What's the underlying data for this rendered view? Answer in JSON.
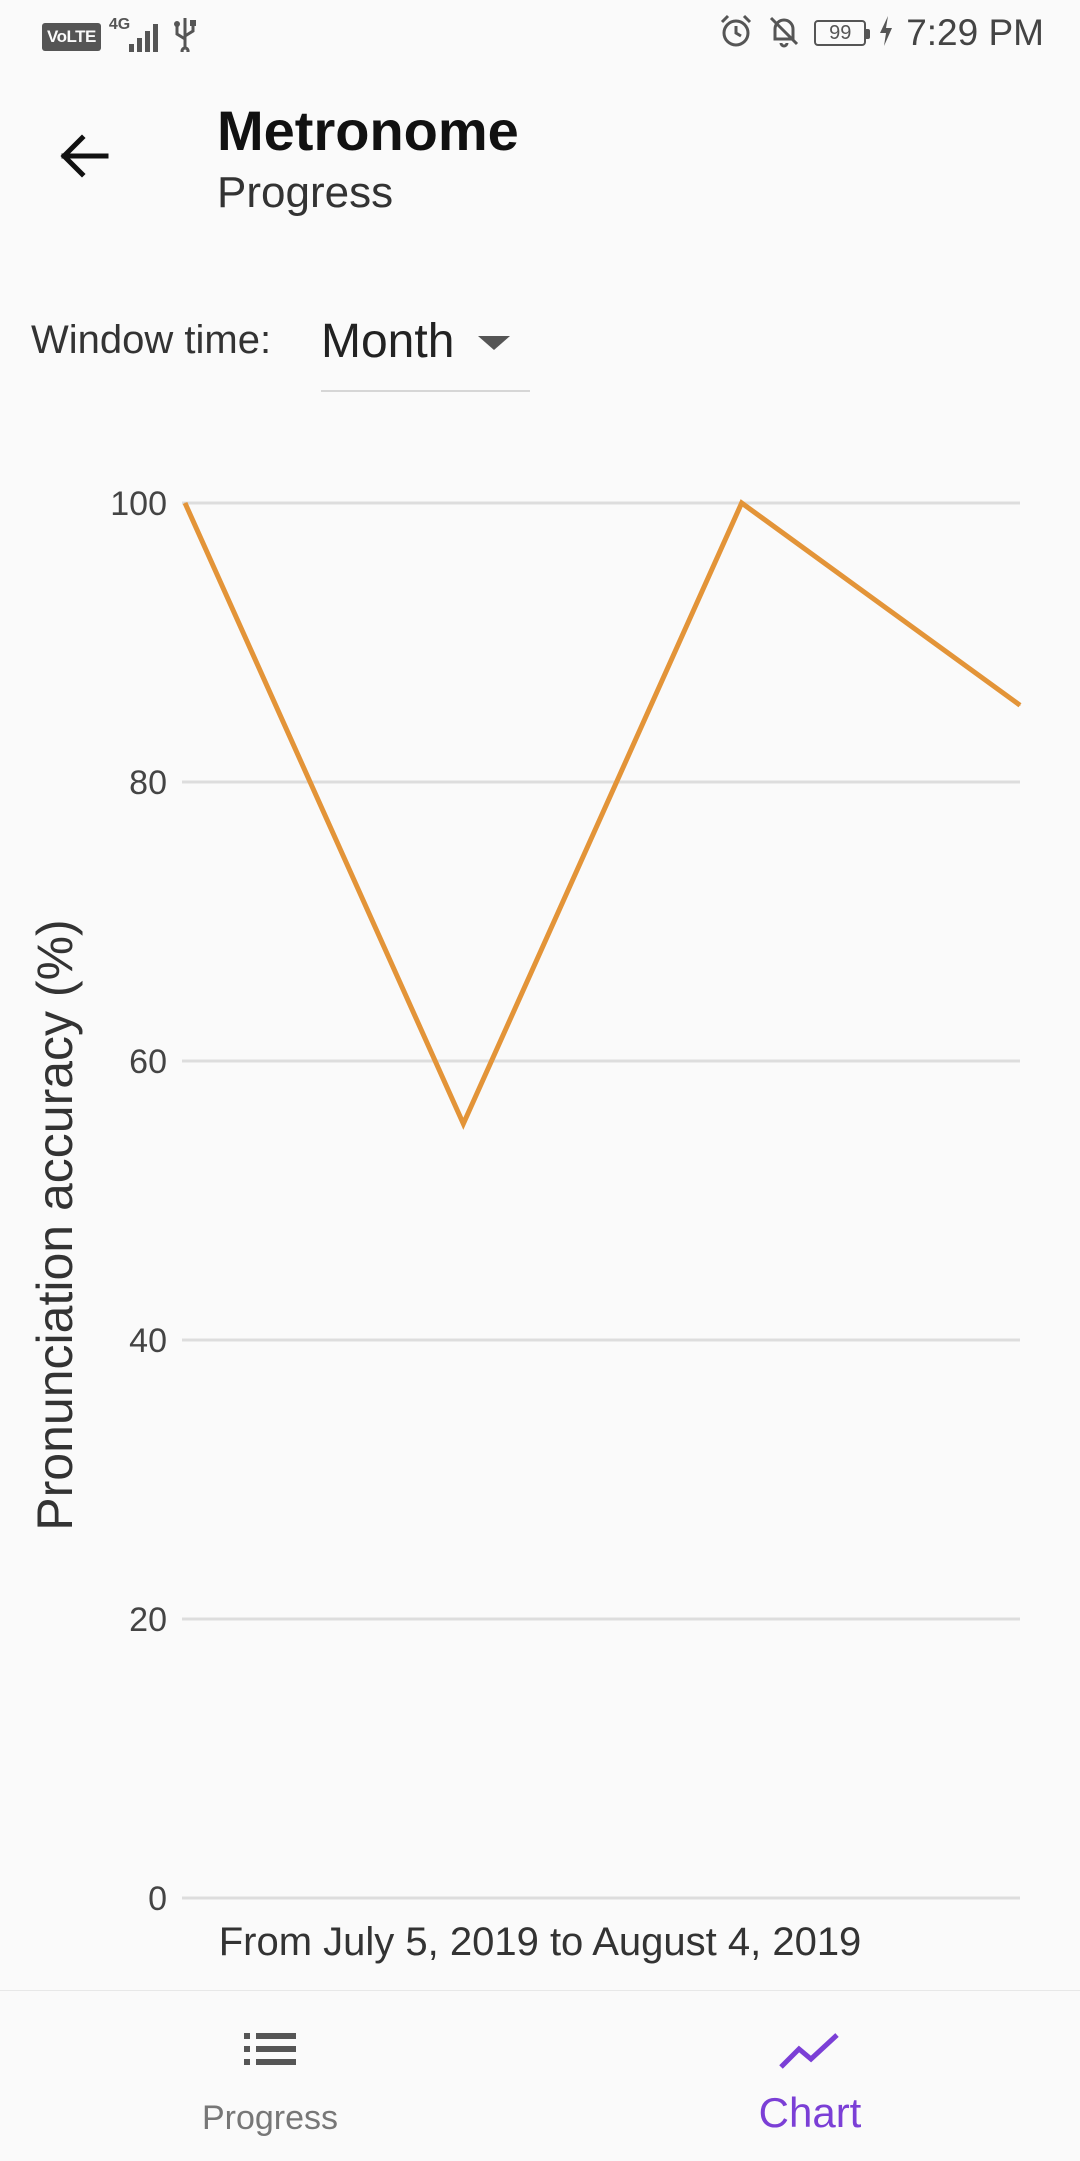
{
  "status_bar": {
    "volte": "VoLTE",
    "network": "4G",
    "battery": "99",
    "time": "7:29 PM",
    "icons": [
      "signal-icon",
      "usb-icon",
      "alarm-icon",
      "bell-off-icon",
      "charging-icon"
    ]
  },
  "toolbar": {
    "title": "Metronome",
    "subtitle": "Progress",
    "back_icon": "arrow-back-icon"
  },
  "window_time": {
    "label": "Window time:",
    "selected": "Month"
  },
  "chart_data": {
    "type": "line",
    "ylabel": "Pronunciation accuracy (%)",
    "y_ticks": [
      "100",
      "80",
      "60",
      "40",
      "20",
      "0"
    ],
    "ylim": [
      0,
      100
    ],
    "x": [
      0,
      1,
      2,
      3
    ],
    "xlim": [
      0,
      3
    ],
    "series": [
      {
        "values": [
          100,
          55.5,
          100,
          85.5
        ],
        "color": "#e39438"
      }
    ],
    "grid": true,
    "x_caption": "From July 5, 2019 to August 4, 2019"
  },
  "bottom_nav": {
    "items": [
      {
        "label": "Progress",
        "icon": "list-icon",
        "active": false
      },
      {
        "label": "Chart",
        "icon": "chart-line-icon",
        "active": true
      }
    ],
    "active_color": "#7b3fd6",
    "inactive_color": "#777777"
  }
}
